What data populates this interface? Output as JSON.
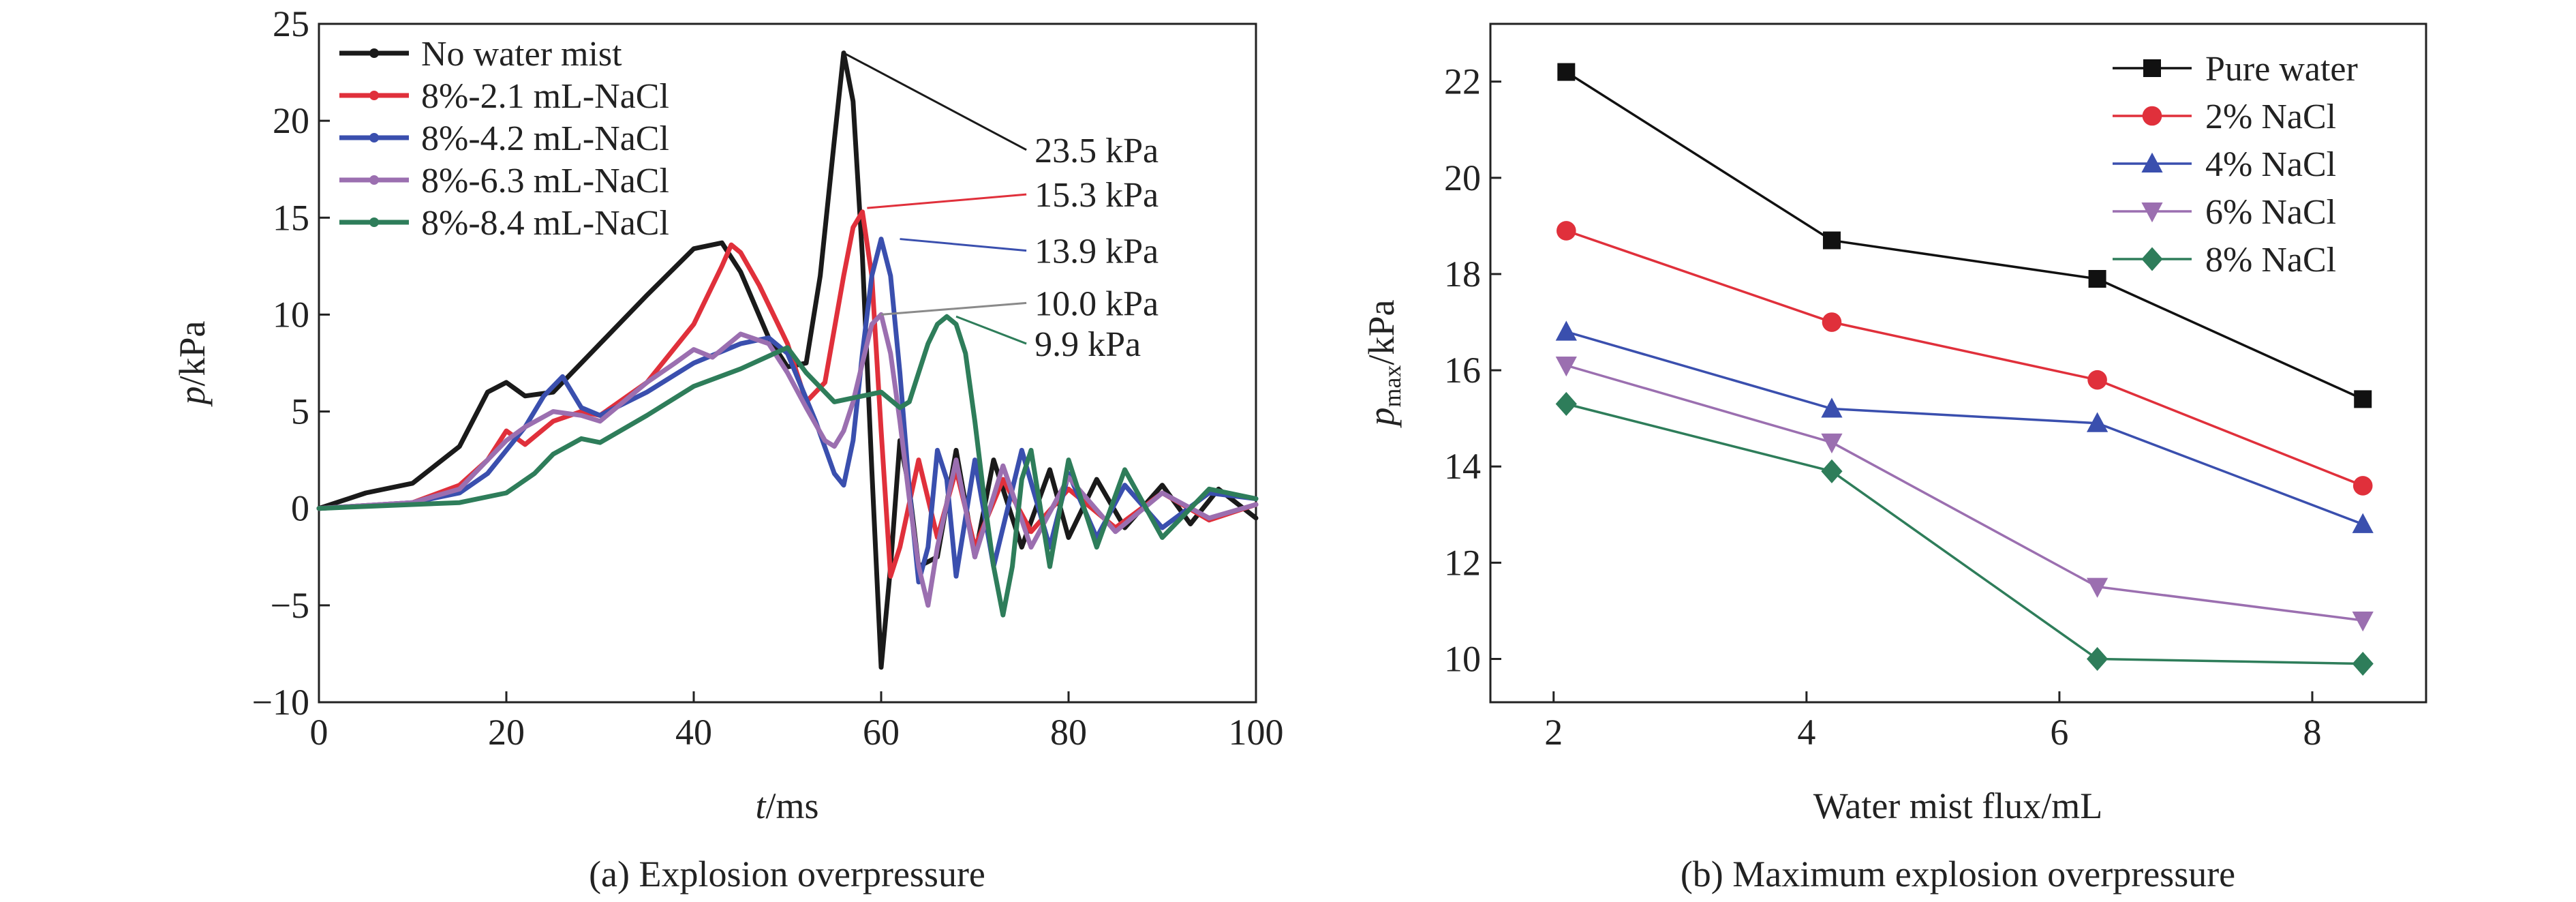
{
  "chart_data": [
    {
      "type": "line",
      "panel_caption": "(a) Explosion overpressure",
      "xlabel_var": "t",
      "xlabel_unit": "/ms",
      "ylabel_var": "p",
      "ylabel_unit": "/kPa",
      "xlim": [
        0,
        100
      ],
      "ylim": [
        -10,
        25
      ],
      "xticks": [
        "0",
        "20",
        "40",
        "60",
        "80",
        "100"
      ],
      "yticks": [
        "−10",
        "−5",
        "0",
        "5",
        "10",
        "15",
        "20",
        "25"
      ],
      "xtick_values": [
        0,
        20,
        40,
        60,
        80,
        100
      ],
      "ytick_values": [
        -10,
        -5,
        0,
        5,
        10,
        15,
        20,
        25
      ],
      "grid": false,
      "legend_position": "top-left",
      "series": [
        {
          "name": "No water mist",
          "color": "#1a1a1a",
          "x": [
            0,
            5,
            10,
            15,
            18,
            20,
            22,
            25,
            30,
            35,
            40,
            43,
            45,
            48,
            50,
            52,
            53.5,
            55,
            56,
            57,
            58,
            59,
            60,
            61,
            62,
            63,
            64,
            66,
            68,
            70,
            72,
            75,
            78,
            80,
            83,
            86,
            90,
            93,
            96,
            100
          ],
          "y": [
            0,
            0.8,
            1.3,
            3.2,
            6,
            6.5,
            5.8,
            6,
            8.5,
            11,
            13.4,
            13.7,
            12.2,
            8.8,
            7.3,
            7.5,
            12,
            19,
            23.5,
            21,
            13,
            2,
            -8.2,
            -3,
            3.5,
            1,
            -3,
            -2.5,
            3,
            -2.5,
            2.5,
            -2,
            2,
            -1.5,
            1.5,
            -1,
            1.2,
            -0.8,
            1,
            -0.5
          ]
        },
        {
          "name": "8%-2.1 mL-NaCl",
          "color": "#e0303b",
          "x": [
            0,
            10,
            15,
            18,
            20,
            22,
            25,
            28,
            30,
            35,
            40,
            43,
            44,
            45,
            47,
            50,
            52,
            54,
            56,
            57,
            58,
            59,
            60,
            61,
            62,
            64,
            66,
            68,
            70,
            73,
            76,
            80,
            85,
            90,
            95,
            100
          ],
          "y": [
            0,
            0.3,
            1.2,
            2.5,
            4,
            3.3,
            4.5,
            5,
            4.8,
            6.5,
            9.5,
            12.5,
            13.6,
            13.2,
            11.5,
            8.5,
            5.5,
            6.5,
            12,
            14.5,
            15.3,
            12,
            4,
            -3.5,
            -2,
            2.5,
            -1.5,
            2,
            -2,
            1.5,
            -1.2,
            1,
            -1,
            0.8,
            -0.6,
            0.2
          ]
        },
        {
          "name": "8%-4.2 mL-NaCl",
          "color": "#3a4fae",
          "x": [
            0,
            10,
            15,
            18,
            20,
            22,
            24,
            26,
            28,
            30,
            35,
            40,
            45,
            48,
            50,
            53,
            55,
            56,
            57,
            58,
            59,
            60,
            61,
            62,
            63,
            64,
            65,
            66,
            67,
            68,
            70,
            72,
            75,
            78,
            80,
            83,
            86,
            90,
            95,
            100
          ],
          "y": [
            0,
            0.3,
            0.8,
            1.8,
            3,
            4.2,
            5.8,
            6.8,
            5.2,
            4.8,
            6,
            7.5,
            8.5,
            8.8,
            8,
            4.5,
            1.8,
            1.2,
            3.5,
            8,
            12,
            13.9,
            12,
            7,
            1,
            -3.8,
            -2,
            3,
            1.5,
            -3.5,
            2.5,
            -3,
            3,
            -2,
            1.8,
            -1.5,
            1.2,
            -1,
            0.8,
            0.5
          ]
        },
        {
          "name": "8%-6.3 mL-NaCl",
          "color": "#9b6fb0",
          "x": [
            0,
            10,
            15,
            18,
            20,
            22,
            25,
            28,
            30,
            35,
            38,
            40,
            42,
            45,
            48,
            50,
            52,
            54,
            55,
            56,
            57,
            58,
            59,
            60,
            61,
            62,
            63,
            64,
            65,
            66,
            68,
            70,
            73,
            76,
            80,
            85,
            90,
            95,
            100
          ],
          "y": [
            0,
            0.3,
            1,
            2.5,
            3.5,
            4.2,
            5,
            4.8,
            4.5,
            6.5,
            7.5,
            8.2,
            7.8,
            9,
            8.5,
            7,
            5.2,
            3.5,
            3.2,
            4,
            5.5,
            7.5,
            9.5,
            10,
            8,
            4.5,
            0.5,
            -3,
            -5,
            -2,
            2.5,
            -2.5,
            2.2,
            -2,
            1.6,
            -1.2,
            0.8,
            -0.5,
            0.2
          ]
        },
        {
          "name": "8%-8.4 mL-NaCl",
          "color": "#2e7d5a",
          "x": [
            0,
            10,
            15,
            20,
            23,
            25,
            28,
            30,
            35,
            40,
            45,
            50,
            52,
            55,
            58,
            60,
            62,
            63,
            64,
            65,
            66,
            67,
            68,
            69,
            70,
            71,
            72,
            73,
            74,
            75,
            76,
            78,
            80,
            83,
            86,
            90,
            95,
            100
          ],
          "y": [
            0,
            0.2,
            0.3,
            0.8,
            1.8,
            2.8,
            3.6,
            3.4,
            4.8,
            6.3,
            7.2,
            8.3,
            7,
            5.5,
            5.8,
            6,
            5.2,
            5.5,
            7,
            8.5,
            9.5,
            9.9,
            9.5,
            8,
            4.5,
            0.5,
            -3,
            -5.5,
            -3,
            1.5,
            3,
            -3,
            2.5,
            -2,
            2,
            -1.5,
            1,
            0.5
          ]
        }
      ],
      "annotations": [
        {
          "text": "23.5 kPa",
          "color": "#1a1a1a",
          "from": [
            56,
            23.5
          ],
          "to": [
            75.5,
            18.5
          ]
        },
        {
          "text": "15.3 kPa",
          "color": "#e0303b",
          "from": [
            58.5,
            15.5
          ],
          "to": [
            75.5,
            16.2
          ]
        },
        {
          "text": "13.9 kPa",
          "color": "#3a4fae",
          "from": [
            62,
            13.9
          ],
          "to": [
            75.5,
            13.3
          ]
        },
        {
          "text": "10.0 kPa",
          "color": "#8a8a8a",
          "from": [
            60,
            10
          ],
          "to": [
            75.5,
            10.6
          ]
        },
        {
          "text": "9.9 kPa",
          "color": "#2e7d5a",
          "from": [
            68,
            9.9
          ],
          "to": [
            75.5,
            8.5
          ]
        }
      ]
    },
    {
      "type": "line",
      "panel_caption": "(b) Maximum explosion overpressure",
      "xlabel": "Water mist flux/mL",
      "ylabel_var": "p",
      "ylabel_sub": "max",
      "ylabel_unit": "/kPa",
      "xlim": [
        1.5,
        8.9
      ],
      "ylim": [
        9.1,
        23.2
      ],
      "xticks": [
        "2",
        "4",
        "6",
        "8"
      ],
      "yticks": [
        "10",
        "12",
        "14",
        "16",
        "18",
        "20",
        "22"
      ],
      "xtick_values": [
        2,
        4,
        6,
        8
      ],
      "ytick_values": [
        10,
        12,
        14,
        16,
        18,
        20,
        22
      ],
      "grid": false,
      "legend_position": "top-right",
      "x": [
        2.1,
        4.2,
        6.3,
        8.4
      ],
      "series": [
        {
          "name": "Pure water",
          "color": "#111111",
          "marker": "square",
          "values": [
            22.2,
            18.7,
            17.9,
            15.4
          ]
        },
        {
          "name": "2% NaCl",
          "color": "#e0303b",
          "marker": "circle",
          "values": [
            18.9,
            17.0,
            15.8,
            13.6
          ]
        },
        {
          "name": "4% NaCl",
          "color": "#3a4fae",
          "marker": "triangle-up",
          "values": [
            16.8,
            15.2,
            14.9,
            12.8
          ]
        },
        {
          "name": "6% NaCl",
          "color": "#9b6fb0",
          "marker": "triangle-down",
          "values": [
            16.1,
            14.5,
            11.5,
            10.8
          ]
        },
        {
          "name": "8% NaCl",
          "color": "#2e7d5a",
          "marker": "diamond",
          "values": [
            15.3,
            13.9,
            10.0,
            9.9
          ]
        }
      ]
    }
  ]
}
